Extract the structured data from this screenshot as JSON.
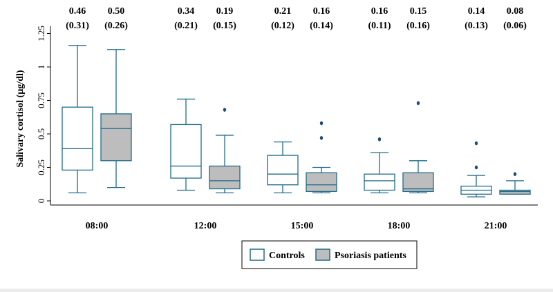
{
  "chart_data": {
    "type": "box",
    "ylabel": "Salivary cortisol (µg/dl)",
    "xlabel": "",
    "ylim": [
      0,
      1.3
    ],
    "yticks": [
      "0",
      "0.25",
      "0.5",
      "0.75",
      "1",
      "1.25"
    ],
    "ytick_values": [
      0,
      0.25,
      0.5,
      0.75,
      1,
      1.25
    ],
    "grid": false,
    "legend_position": "bottom-right",
    "categories": [
      "08:00",
      "12:00",
      "15:00",
      "18:00",
      "21:00"
    ],
    "series": [
      {
        "name": "Controls",
        "fill": "#ffffff",
        "boxes": [
          {
            "whisker_low": 0.06,
            "q1": 0.23,
            "median": 0.39,
            "q3": 0.7,
            "whisker_high": 1.16,
            "outliers": []
          },
          {
            "whisker_low": 0.08,
            "q1": 0.17,
            "median": 0.26,
            "q3": 0.57,
            "whisker_high": 0.76,
            "outliers": []
          },
          {
            "whisker_low": 0.06,
            "q1": 0.12,
            "median": 0.2,
            "q3": 0.34,
            "whisker_high": 0.44,
            "outliers": []
          },
          {
            "whisker_low": 0.06,
            "q1": 0.08,
            "median": 0.15,
            "q3": 0.2,
            "whisker_high": 0.36,
            "outliers": [
              0.46
            ]
          },
          {
            "whisker_low": 0.03,
            "q1": 0.05,
            "median": 0.08,
            "q3": 0.11,
            "whisker_high": 0.19,
            "outliers": [
              0.25,
              0.43
            ]
          }
        ],
        "annotations": [
          {
            "mean": "0.46",
            "sd": "(0.31)"
          },
          {
            "mean": "0.34",
            "sd": "(0.21)"
          },
          {
            "mean": "0.21",
            "sd": "(0.12)"
          },
          {
            "mean": "0.16",
            "sd": "(0.11)"
          },
          {
            "mean": "0.14",
            "sd": "(0.13)"
          }
        ]
      },
      {
        "name": "Psoriasis patients",
        "fill": "#bdbdbd",
        "boxes": [
          {
            "whisker_low": 0.1,
            "q1": 0.3,
            "median": 0.54,
            "q3": 0.65,
            "whisker_high": 1.13,
            "outliers": []
          },
          {
            "whisker_low": 0.06,
            "q1": 0.09,
            "median": 0.15,
            "q3": 0.26,
            "whisker_high": 0.49,
            "outliers": [
              0.68
            ]
          },
          {
            "whisker_low": 0.06,
            "q1": 0.07,
            "median": 0.12,
            "q3": 0.21,
            "whisker_high": 0.25,
            "outliers": [
              0.47,
              0.58
            ]
          },
          {
            "whisker_low": 0.06,
            "q1": 0.07,
            "median": 0.09,
            "q3": 0.21,
            "whisker_high": 0.3,
            "outliers": [
              0.73
            ]
          },
          {
            "whisker_low": 0.05,
            "q1": 0.05,
            "median": 0.07,
            "q3": 0.08,
            "whisker_high": 0.15,
            "outliers": [
              0.2
            ]
          }
        ],
        "annotations": [
          {
            "mean": "0.50",
            "sd": "(0.26)"
          },
          {
            "mean": "0.19",
            "sd": "(0.15)"
          },
          {
            "mean": "0.16",
            "sd": "(0.14)"
          },
          {
            "mean": "0.15",
            "sd": "(0.16)"
          },
          {
            "mean": "0.08",
            "sd": "(0.06)"
          }
        ]
      }
    ],
    "colors": {
      "box_stroke": "#1e6b8a",
      "outlier": "#1e4b7a",
      "axis": "#000000",
      "background": "#ececec",
      "plot_background": "#ffffff"
    }
  }
}
